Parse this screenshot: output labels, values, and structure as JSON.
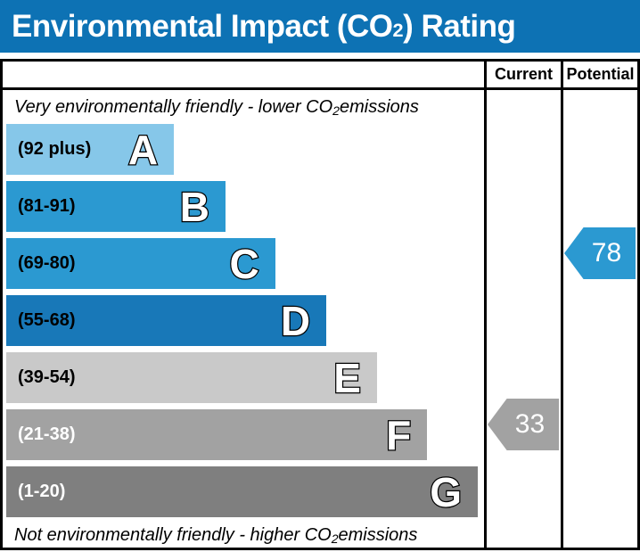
{
  "title": {
    "pre": "Environmental Impact (CO",
    "sub": "2",
    "post": ") Rating"
  },
  "title_bar_color": "#0d72b4",
  "columns": {
    "current": "Current",
    "potential": "Potential"
  },
  "notes": {
    "top": {
      "pre": "Very environmentally friendly - lower CO",
      "sub": "2",
      "post": " emissions"
    },
    "bottom": {
      "pre": "Not environmentally friendly - higher CO",
      "sub": "2",
      "post": " emissions"
    }
  },
  "chart_data": {
    "type": "bar",
    "title": "Environmental Impact (CO2) Rating",
    "orientation": "horizontal",
    "bands": [
      {
        "letter": "A",
        "range": "(92 plus)",
        "min": 92,
        "max": 100,
        "color": "#86c7e9",
        "label_color": "#000000",
        "width_pct": 35.1
      },
      {
        "letter": "B",
        "range": "(81-91)",
        "min": 81,
        "max": 91,
        "color": "#2b99d1",
        "label_color": "#000000",
        "width_pct": 45.9
      },
      {
        "letter": "C",
        "range": "(69-80)",
        "min": 69,
        "max": 80,
        "color": "#2b99d1",
        "label_color": "#000000",
        "width_pct": 56.3
      },
      {
        "letter": "D",
        "range": "(55-68)",
        "min": 55,
        "max": 68,
        "color": "#1878b8",
        "label_color": "#000000",
        "width_pct": 67.0
      },
      {
        "letter": "E",
        "range": "(39-54)",
        "min": 39,
        "max": 54,
        "color": "#c9c9c9",
        "label_color": "#000000",
        "width_pct": 77.6
      },
      {
        "letter": "F",
        "range": "(21-38)",
        "min": 21,
        "max": 38,
        "color": "#a2a2a2",
        "label_color": "#ffffff",
        "width_pct": 88.1
      },
      {
        "letter": "G",
        "range": "(1-20)",
        "min": 1,
        "max": 20,
        "color": "#7f7f7f",
        "label_color": "#ffffff",
        "width_pct": 98.7
      }
    ],
    "markers": {
      "current": {
        "value": 33,
        "band": "F",
        "band_index": 5,
        "color": "#a2a2a2"
      },
      "potential": {
        "value": 78,
        "band": "C",
        "band_index": 2,
        "color": "#2b99d1"
      }
    }
  }
}
